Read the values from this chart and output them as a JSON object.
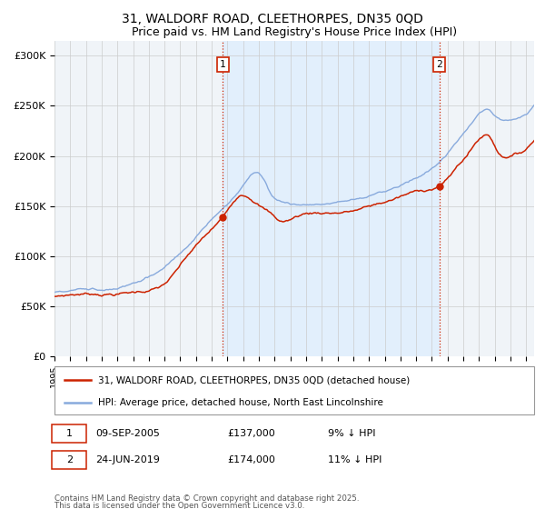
{
  "title_line1": "31, WALDORF ROAD, CLEETHORPES, DN35 0QD",
  "title_line2": "Price paid vs. HM Land Registry's House Price Index (HPI)",
  "legend_entry1": "31, WALDORF ROAD, CLEETHORPES, DN35 0QD (detached house)",
  "legend_entry2": "HPI: Average price, detached house, North East Lincolnshire",
  "marker1_date": "09-SEP-2005",
  "marker1_price": "£137,000",
  "marker1_hpi": "9% ↓ HPI",
  "marker2_date": "24-JUN-2019",
  "marker2_price": "£174,000",
  "marker2_hpi": "11% ↓ HPI",
  "footnote1": "Contains HM Land Registry data © Crown copyright and database right 2025.",
  "footnote2": "This data is licensed under the Open Government Licence v3.0.",
  "ylabel_ticks": [
    "£0",
    "£50K",
    "£100K",
    "£150K",
    "£200K",
    "£250K",
    "£300K"
  ],
  "ylabel_values": [
    0,
    50000,
    100000,
    150000,
    200000,
    250000,
    300000
  ],
  "ylim": [
    0,
    315000
  ],
  "xlim_start": 1995.0,
  "xlim_end": 2025.5,
  "line_color_property": "#cc2200",
  "line_color_hpi": "#88aadd",
  "vline_color": "#cc2200",
  "shade_color": "#ddeeff",
  "background_color": "#f0f4f8",
  "grid_color": "#cccccc",
  "marker1_x": 2005.69,
  "marker2_x": 2019.48,
  "marker1_label": "1",
  "marker2_label": "2",
  "marker1_y": 137000,
  "marker2_y": 174000
}
